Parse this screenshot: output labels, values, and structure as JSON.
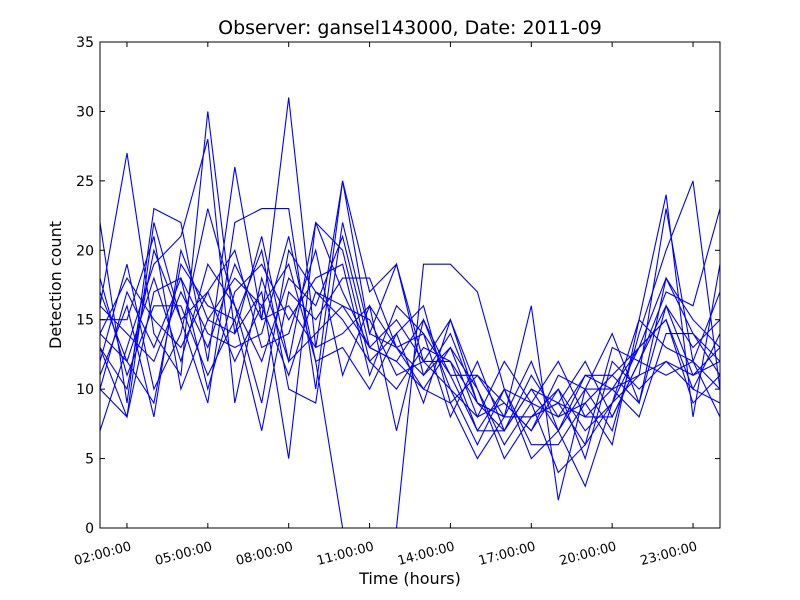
{
  "chart_data": {
    "type": "line",
    "title": "Observer: gansel143000, Date: 2011-09",
    "xlabel": "Time (hours)",
    "ylabel": "Detection count",
    "xlim": [
      1,
      24
    ],
    "ylim": [
      0,
      35
    ],
    "x_ticks": [
      {
        "value": 2,
        "label": "02:00:00"
      },
      {
        "value": 5,
        "label": "05:00:00"
      },
      {
        "value": 8,
        "label": "08:00:00"
      },
      {
        "value": 11,
        "label": "11:00:00"
      },
      {
        "value": 14,
        "label": "14:00:00"
      },
      {
        "value": 17,
        "label": "17:00:00"
      },
      {
        "value": 20,
        "label": "20:00:00"
      },
      {
        "value": 23,
        "label": "23:00:00"
      }
    ],
    "y_ticks": [
      0,
      5,
      10,
      15,
      20,
      25,
      30,
      35
    ],
    "grid": false,
    "legend": "none",
    "line_color": "#0000ff",
    "x": [
      1,
      2,
      3,
      4,
      5,
      6,
      7,
      8,
      9,
      10,
      11,
      12,
      13,
      14,
      15,
      16,
      17,
      18,
      19,
      20,
      21,
      22,
      23,
      24
    ],
    "series": [
      {
        "values": [
          22,
          9,
          23,
          22,
          12,
          26,
          15,
          31,
          13,
          25,
          17,
          19,
          12,
          15,
          9,
          8,
          8,
          9,
          6,
          13,
          12,
          17,
          16,
          23
        ]
      },
      {
        "values": [
          16,
          27,
          14,
          11,
          30,
          14,
          17,
          5,
          22,
          17,
          13,
          12,
          15,
          10,
          6,
          10,
          5,
          7,
          3,
          9,
          15,
          24,
          8,
          19
        ]
      },
      {
        "values": [
          7,
          13,
          19,
          21,
          28,
          9,
          18,
          12,
          22,
          20,
          12,
          14,
          16,
          9,
          5,
          8,
          16,
          2,
          10,
          7,
          14,
          20,
          25,
          10
        ]
      },
      {
        "values": [
          10,
          8,
          22,
          15,
          9,
          22,
          23,
          23,
          10,
          25,
          14,
          19,
          11,
          13,
          8,
          12,
          9,
          12,
          8,
          10,
          11,
          23,
          12,
          17
        ]
      },
      {
        "values": [
          17,
          12,
          9,
          19,
          16,
          15,
          7,
          17,
          15,
          18,
          18,
          13,
          10,
          9,
          11,
          9,
          7,
          11,
          10,
          14,
          9,
          18,
          14,
          12
        ]
      },
      {
        "values": [
          14,
          18,
          15,
          13,
          17,
          20,
          13,
          14,
          20,
          11,
          16,
          7,
          15,
          11,
          7,
          7,
          11,
          8,
          11,
          11,
          13,
          15,
          10,
          9
        ]
      },
      {
        "values": [
          13,
          8,
          17,
          18,
          10,
          17,
          19,
          15,
          18,
          19,
          11,
          16,
          14,
          8,
          12,
          7,
          10,
          9,
          12,
          8,
          12,
          16,
          13,
          15
        ]
      },
      {
        "values": [
          15,
          15,
          21,
          10,
          15,
          18,
          16,
          19,
          12,
          13,
          10,
          14,
          9,
          15,
          10,
          5,
          8,
          10,
          5,
          12,
          10,
          12,
          11,
          13
        ]
      },
      {
        "values": [
          12,
          19,
          10,
          14,
          23,
          16,
          9,
          20,
          17,
          15,
          12,
          10,
          13,
          12,
          7,
          10,
          6,
          6,
          9,
          6,
          15,
          13,
          12,
          8
        ]
      },
      {
        "values": [
          18,
          11,
          16,
          16,
          11,
          15,
          20,
          10,
          9,
          22,
          14,
          13,
          11,
          14,
          9,
          8,
          12,
          7,
          11,
          10,
          8,
          14,
          14,
          11
        ]
      },
      {
        "values": [
          11,
          16,
          8,
          20,
          15,
          14,
          21,
          12,
          14,
          16,
          15,
          11,
          12,
          10,
          8,
          9,
          7,
          10,
          7,
          9,
          11,
          12,
          10,
          14
        ]
      },
      {
        "values": [
          14,
          12,
          18,
          12,
          19,
          16,
          12,
          18,
          16,
          21,
          13,
          12,
          10,
          13,
          10,
          6,
          9,
          8,
          9,
          11,
          9,
          16,
          11,
          12
        ]
      },
      {
        "values": [
          16,
          14,
          12,
          17,
          13,
          19,
          15,
          16,
          13,
          14,
          16,
          13,
          14,
          11,
          11,
          8,
          8,
          9,
          8,
          8,
          12,
          11,
          12,
          10
        ]
      },
      {
        "values": [
          13,
          10,
          20,
          15,
          17,
          12,
          16,
          11,
          17,
          16,
          13,
          15,
          12,
          12,
          9,
          7,
          10,
          7,
          10,
          10,
          13,
          15,
          9,
          11
        ]
      },
      {
        "values": [
          10,
          17,
          13,
          18,
          14,
          13,
          14,
          21,
          12,
          0,
          0,
          0,
          19,
          19,
          17,
          10,
          9,
          4,
          6,
          9,
          13,
          18,
          15,
          13
        ]
      }
    ]
  }
}
